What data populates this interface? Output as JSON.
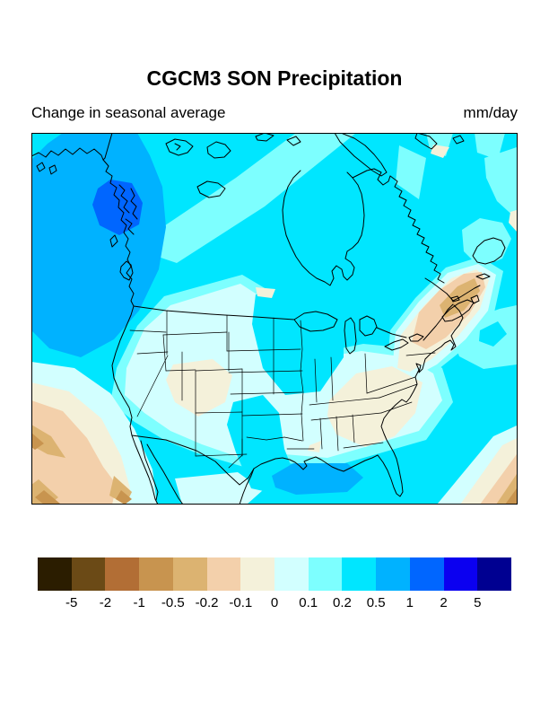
{
  "page": {
    "background": "#ffffff"
  },
  "header": {
    "title": "CGCM3 SON Precipitation",
    "subtitle": "Change in seasonal average",
    "units": "mm/day"
  },
  "chart_data": {
    "type": "heatmap",
    "title": "CGCM3 SON Precipitation",
    "subtitle": "Change in seasonal average",
    "units": "mm/day",
    "region": "North America filled-contour map with coastlines, US state borders and national borders",
    "legend_position": "bottom horizontal colorbar",
    "colorbar": {
      "orientation": "horizontal",
      "tick_labels": [
        "-5",
        "-2",
        "-1",
        "-0.5",
        "-0.2",
        "-0.1",
        "0",
        "0.1",
        "0.2",
        "0.5",
        "1",
        "2",
        "5"
      ],
      "segment_colors": [
        "#2b1d00",
        "#6b4a16",
        "#b26e35",
        "#c8944f",
        "#dcb371",
        "#f3d0ab",
        "#f4f1da",
        "#d2ffff",
        "#7dffff",
        "#00e6ff",
        "#00b2ff",
        "#0066ff",
        "#0b00f0",
        "#000091"
      ],
      "segment_ranges": [
        "< -5",
        "-5 to -2",
        "-2 to -1",
        "-1 to -0.5",
        "-0.5 to -0.2",
        "-0.2 to -0.1",
        "-0.1 to 0",
        "0 to 0.1",
        "0.1 to 0.2",
        "0.2 to 0.5",
        "0.5 to 1",
        "1 to 2",
        "2 to 5",
        "> 5"
      ]
    },
    "regions": [
      {
        "area": "Gulf of Alaska and British Columbia coast",
        "change_mm_day": "0.5 to 1"
      },
      {
        "area": "Alaska panhandle (local maximum)",
        "change_mm_day": "1 to 2"
      },
      {
        "area": "most of Canada, Arctic and surrounding oceans",
        "change_mm_day": "0.2 to 0.5"
      },
      {
        "area": "western and central US interior",
        "change_mm_day": "0 to 0.1"
      },
      {
        "area": "Pacific Northwest, upper Midwest and Texas-Oklahoma",
        "change_mm_day": "0.2 to 0.5"
      },
      {
        "area": "Colorado-Utah four corners",
        "change_mm_day": "-0.1 to 0"
      },
      {
        "area": "Kentucky-Tennessee through the Carolinas",
        "change_mm_day": "-0.1 to 0"
      },
      {
        "area": "Nova Scotia and the Maritimes (local minimum)",
        "change_mm_day": "-0.5 to -0.1"
      },
      {
        "area": "Gulf of Mexico (local maximum)",
        "change_mm_day": "0.5 to 1"
      },
      {
        "area": "Pacific off Baja California and southwest corner",
        "change_mm_day": "-1 to -0.1"
      },
      {
        "area": "Atlantic southeast corner",
        "change_mm_day": "-1 to -0.2"
      }
    ]
  }
}
